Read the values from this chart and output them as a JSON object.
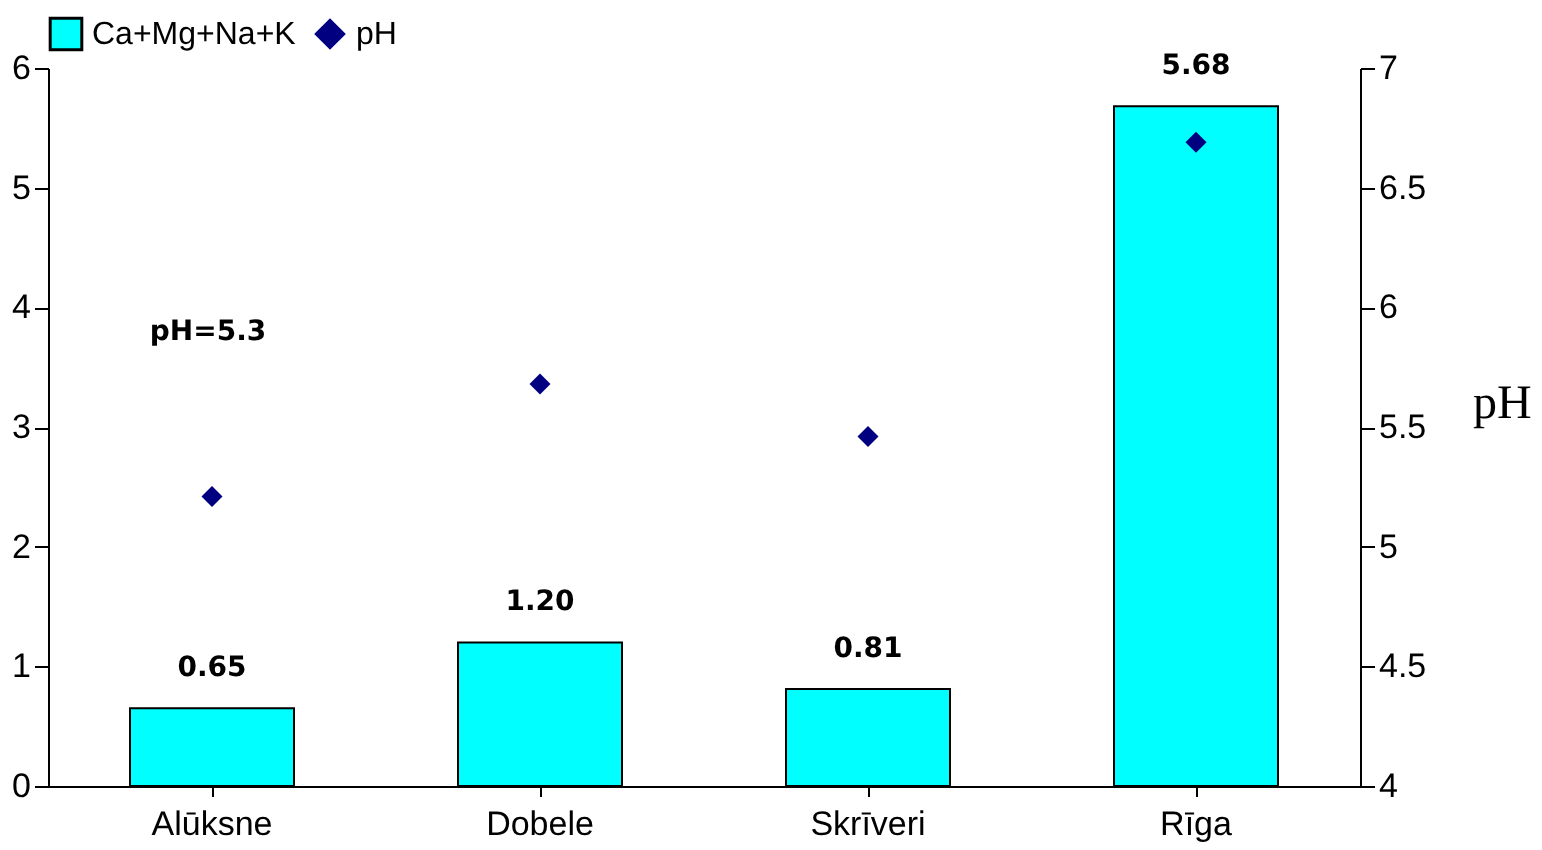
{
  "chart_data": {
    "type": "bar",
    "categories": [
      "Alūksne",
      "Dobele",
      "Skrīveri",
      "Rīga"
    ],
    "series": [
      {
        "name": "Ca+Mg+Na+K",
        "color": "#00ffff",
        "values": [
          0.65,
          1.2,
          0.81,
          5.68
        ],
        "value_labels": [
          "0.65",
          "1.20",
          "0.81",
          "5.68"
        ]
      },
      {
        "name": "pH",
        "type": "scatter",
        "axis": "y2",
        "color": "#000080",
        "values": [
          5.21,
          5.68,
          5.46,
          6.69
        ]
      }
    ],
    "ylim": [
      0,
      6
    ],
    "yticks": [
      0,
      1,
      2,
      3,
      4,
      5,
      6
    ],
    "y2lim": [
      4,
      7
    ],
    "y2ticks": [
      4,
      4.5,
      5,
      5.5,
      6,
      6.5,
      7
    ],
    "y2label": "pH",
    "annotations": [
      "pH=5.3"
    ],
    "marker": "diamond",
    "legend": "top",
    "grid": false
  }
}
